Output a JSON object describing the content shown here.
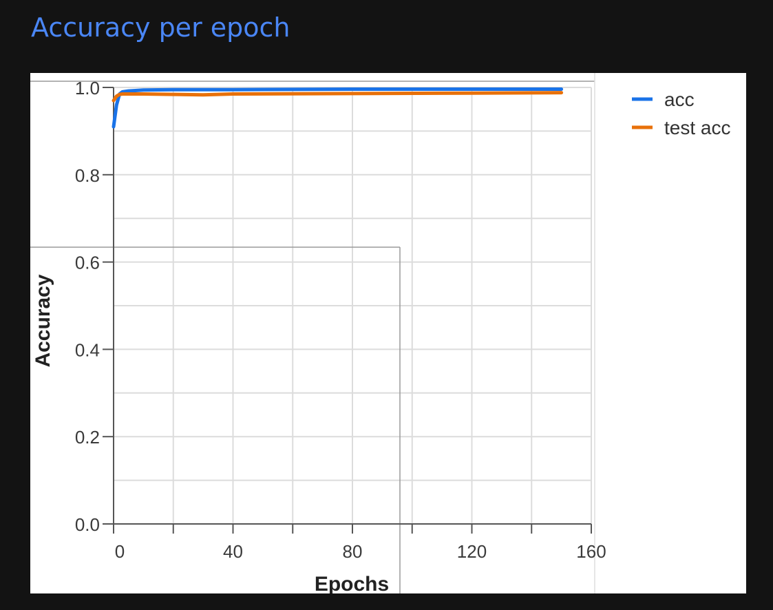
{
  "page": {
    "title": "Accuracy per epoch"
  },
  "chart_data": {
    "type": "line",
    "title": "",
    "xlabel": "Epochs",
    "ylabel": "Accuracy",
    "xlim": [
      0,
      160
    ],
    "ylim": [
      0,
      1.0
    ],
    "x_ticks": [
      "0",
      "40",
      "80",
      "120",
      "160"
    ],
    "y_ticks": [
      "0.0",
      "0.2",
      "0.4",
      "0.6",
      "0.8",
      "1.0"
    ],
    "grid": true,
    "legend_position": "right",
    "series": [
      {
        "name": "acc",
        "color": "#1a73e8",
        "x": [
          0,
          1,
          2,
          3,
          5,
          10,
          20,
          40,
          80,
          120,
          150
        ],
        "y": [
          0.91,
          0.96,
          0.985,
          0.99,
          0.992,
          0.994,
          0.995,
          0.995,
          0.996,
          0.996,
          0.996
        ]
      },
      {
        "name": "test acc",
        "color": "#e8710a",
        "x": [
          0,
          1,
          2,
          3,
          5,
          10,
          20,
          30,
          40,
          80,
          120,
          150
        ],
        "y": [
          0.97,
          0.98,
          0.984,
          0.985,
          0.985,
          0.985,
          0.984,
          0.983,
          0.985,
          0.986,
          0.987,
          0.988
        ]
      }
    ]
  }
}
